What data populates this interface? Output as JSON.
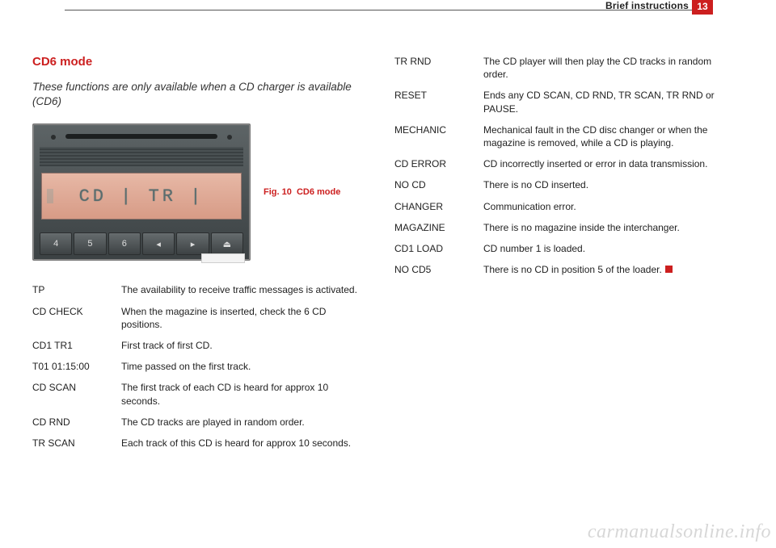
{
  "header": {
    "section": "Brief instructions",
    "page_number": "13"
  },
  "left": {
    "title": "CD6 mode",
    "lead": "These functions are only available when a CD charger is available (CD6)",
    "figure": {
      "display_text": "CD | TR |",
      "buttons": [
        "4",
        "5",
        "6",
        "◂",
        "▸",
        "⏏"
      ],
      "caption_label": "Fig. 10",
      "caption_text": "CD6 mode"
    },
    "defs": [
      {
        "term": "TP",
        "desc": "The availability to receive traffic messages is activated."
      },
      {
        "term": "CD CHECK",
        "desc": "When the magazine is inserted, check the 6 CD positions."
      },
      {
        "term": "CD1 TR1",
        "desc": "First track of first CD."
      },
      {
        "term": "T01 01:15:00",
        "desc": "Time passed on the first track."
      },
      {
        "term": "CD SCAN",
        "desc": "The first track of each CD is heard for approx 10 seconds."
      },
      {
        "term": "CD RND",
        "desc": "The CD tracks are played in random order."
      },
      {
        "term": "TR SCAN",
        "desc": "Each track of this CD is heard for approx 10 seconds."
      }
    ]
  },
  "right": {
    "defs": [
      {
        "term": "TR RND",
        "desc": "The CD player will then play the CD tracks in random order."
      },
      {
        "term": "RESET",
        "desc": "Ends any CD SCAN, CD RND, TR SCAN, TR RND or PAUSE."
      },
      {
        "term": "MECHANIC",
        "desc": "Mechanical fault in the CD disc changer or when the magazine is removed, while a CD is playing."
      },
      {
        "term": "CD ERROR",
        "desc": "CD incorrectly inserted or error in data transmission."
      },
      {
        "term": "NO CD",
        "desc": "There is no CD inserted."
      },
      {
        "term": "CHANGER",
        "desc": "Communication error."
      },
      {
        "term": "MAGAZINE",
        "desc": "There is no magazine inside the interchanger."
      },
      {
        "term": "CD1 LOAD",
        "desc": "CD number 1 is loaded."
      },
      {
        "term": "NO CD5",
        "desc": "There is no CD in position 5 of the loader.",
        "end": true
      }
    ]
  },
  "watermark": "carmanualsonline.info",
  "colors": {
    "accent": "#cc1f1f"
  }
}
